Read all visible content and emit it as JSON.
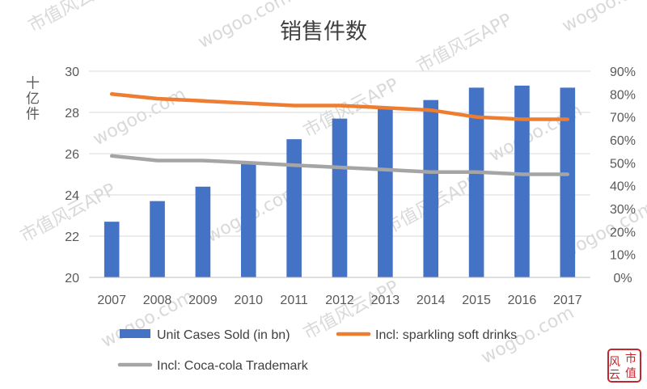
{
  "chart_data": {
    "type": "bar",
    "title": "销售件数",
    "ylabel": "十亿件",
    "categories": [
      "2007",
      "2008",
      "2009",
      "2010",
      "2011",
      "2012",
      "2013",
      "2014",
      "2015",
      "2016",
      "2017"
    ],
    "ylim": [
      20,
      30
    ],
    "y_ticks": [
      "20",
      "22",
      "24",
      "26",
      "28",
      "30"
    ],
    "y2lim": [
      0,
      0.9
    ],
    "y2_ticks": [
      "0%",
      "10%",
      "20%",
      "30%",
      "40%",
      "50%",
      "60%",
      "70%",
      "80%",
      "90%"
    ],
    "grid": true,
    "legend_position": "bottom",
    "series": [
      {
        "name": "Unit Cases Sold (in bn)",
        "kind": "bar",
        "axis": "left",
        "color": "#4472C4",
        "values": [
          22.7,
          23.7,
          24.4,
          25.5,
          26.7,
          27.7,
          28.2,
          28.6,
          29.2,
          29.3,
          29.2
        ]
      },
      {
        "name": "Incl: sparkling soft drinks",
        "kind": "line",
        "axis": "right",
        "color": "#ED7D31",
        "values": [
          0.8,
          0.78,
          0.77,
          0.76,
          0.75,
          0.75,
          0.74,
          0.73,
          0.7,
          0.69,
          0.69
        ]
      },
      {
        "name": "Incl: Coca-cola Trademark",
        "kind": "line",
        "axis": "right",
        "color": "#A5A5A5",
        "values": [
          0.53,
          0.51,
          0.51,
          0.5,
          0.49,
          0.48,
          0.47,
          0.46,
          0.46,
          0.45,
          0.45
        ]
      }
    ]
  },
  "watermark": {
    "text_a": "市值风云APP",
    "text_b": "wogoo.com",
    "seal": "风云市值",
    "seal_color": "#C0282D"
  }
}
